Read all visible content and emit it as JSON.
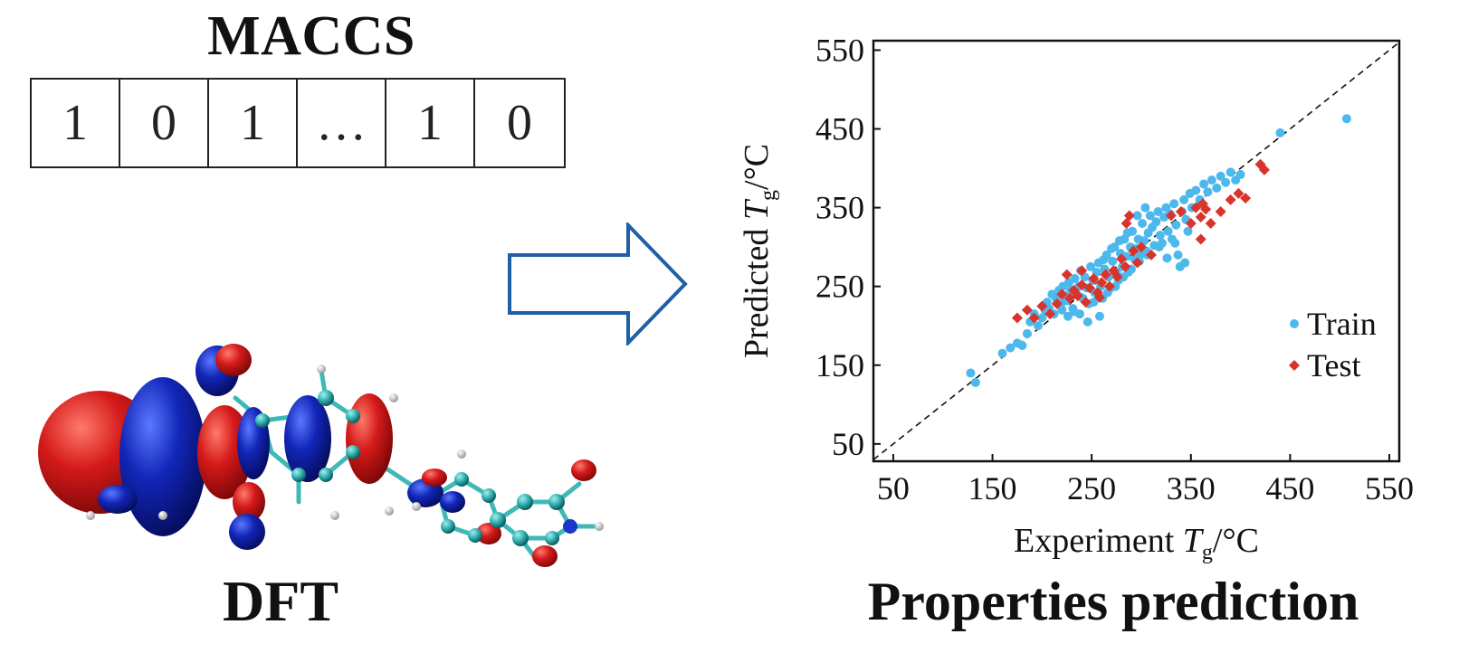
{
  "maccs": {
    "title": "MACCS",
    "bits": [
      "1",
      "0",
      "1",
      "…",
      "1",
      "0"
    ]
  },
  "dft": {
    "label": "DFT"
  },
  "prediction": {
    "label": "Properties prediction"
  },
  "colors": {
    "train": "#4db8ec",
    "test": "#d9342c",
    "arrow": "#1f5fa8",
    "orbital_red": "#d41a1a",
    "orbital_blue": "#1226b8",
    "atom_c": "#2aa6a6"
  },
  "chart_data": {
    "type": "scatter",
    "xlabel": "Experiment Tg/°C",
    "ylabel": "Predicted Tg/°C",
    "xlim": [
      30,
      560
    ],
    "ylim": [
      28,
      562
    ],
    "xticks": [
      50,
      150,
      250,
      350,
      450,
      550
    ],
    "yticks": [
      50,
      150,
      250,
      350,
      450,
      550
    ],
    "diagonal": true,
    "legend_position": "lower-right",
    "series": [
      {
        "name": "Train",
        "marker": "circle",
        "points": [
          [
            128,
            140
          ],
          [
            133,
            128
          ],
          [
            160,
            165
          ],
          [
            168,
            172
          ],
          [
            175,
            178
          ],
          [
            180,
            175
          ],
          [
            185,
            190
          ],
          [
            188,
            205
          ],
          [
            192,
            215
          ],
          [
            196,
            200
          ],
          [
            200,
            210
          ],
          [
            203,
            220
          ],
          [
            205,
            230
          ],
          [
            207,
            222
          ],
          [
            210,
            240
          ],
          [
            212,
            215
          ],
          [
            214,
            235
          ],
          [
            217,
            245
          ],
          [
            219,
            228
          ],
          [
            221,
            250
          ],
          [
            223,
            238
          ],
          [
            225,
            232
          ],
          [
            227,
            255
          ],
          [
            229,
            245
          ],
          [
            231,
            222
          ],
          [
            233,
            260
          ],
          [
            235,
            240
          ],
          [
            237,
            250
          ],
          [
            239,
            270
          ],
          [
            241,
            235
          ],
          [
            243,
            262
          ],
          [
            245,
            248
          ],
          [
            247,
            228
          ],
          [
            249,
            275
          ],
          [
            251,
            258
          ],
          [
            253,
            242
          ],
          [
            255,
            268
          ],
          [
            257,
            280
          ],
          [
            259,
            250
          ],
          [
            261,
            235
          ],
          [
            263,
            272
          ],
          [
            265,
            290
          ],
          [
            267,
            262
          ],
          [
            269,
            248
          ],
          [
            271,
            282
          ],
          [
            273,
            300
          ],
          [
            275,
            268
          ],
          [
            277,
            258
          ],
          [
            279,
            292
          ],
          [
            281,
            275
          ],
          [
            283,
            310
          ],
          [
            285,
            288
          ],
          [
            287,
            268
          ],
          [
            289,
            300
          ],
          [
            291,
            320
          ],
          [
            293,
            285
          ],
          [
            295,
            298
          ],
          [
            297,
            310
          ],
          [
            299,
            290
          ],
          [
            301,
            330
          ],
          [
            303,
            308
          ],
          [
            305,
            295
          ],
          [
            307,
            318
          ],
          [
            309,
            340
          ],
          [
            311,
            325
          ],
          [
            313,
            302
          ],
          [
            315,
            332
          ],
          [
            317,
            345
          ],
          [
            319,
            315
          ],
          [
            321,
            305
          ],
          [
            323,
            338
          ],
          [
            325,
            350
          ],
          [
            327,
            320
          ],
          [
            329,
            342
          ],
          [
            331,
            310
          ],
          [
            333,
            355
          ],
          [
            335,
            328
          ],
          [
            337,
            290
          ],
          [
            339,
            275
          ],
          [
            341,
            345
          ],
          [
            343,
            360
          ],
          [
            345,
            335
          ],
          [
            347,
            320
          ],
          [
            349,
            368
          ],
          [
            351,
            350
          ],
          [
            355,
            372
          ],
          [
            359,
            360
          ],
          [
            363,
            380
          ],
          [
            367,
            370
          ],
          [
            371,
            385
          ],
          [
            376,
            375
          ],
          [
            380,
            390
          ],
          [
            385,
            382
          ],
          [
            390,
            395
          ],
          [
            395,
            385
          ],
          [
            400,
            392
          ],
          [
            440,
            445
          ],
          [
            507,
            463
          ],
          [
            220,
            220
          ],
          [
            226,
            212
          ],
          [
            232,
            218
          ],
          [
            238,
            215
          ],
          [
            246,
            205
          ],
          [
            252,
            230
          ],
          [
            258,
            212
          ],
          [
            266,
            242
          ],
          [
            274,
            250
          ],
          [
            282,
            262
          ],
          [
            290,
            272
          ],
          [
            298,
            282
          ],
          [
            306,
            290
          ],
          [
            318,
            300
          ],
          [
            326,
            286
          ],
          [
            334,
            305
          ],
          [
            344,
            280
          ],
          [
            296,
            340
          ],
          [
            304,
            350
          ],
          [
            286,
            318
          ],
          [
            278,
            308
          ],
          [
            270,
            298
          ],
          [
            262,
            284
          ]
        ]
      },
      {
        "name": "Test",
        "marker": "diamond",
        "points": [
          [
            175,
            210
          ],
          [
            185,
            220
          ],
          [
            192,
            210
          ],
          [
            200,
            225
          ],
          [
            208,
            215
          ],
          [
            215,
            228
          ],
          [
            220,
            240
          ],
          [
            225,
            265
          ],
          [
            228,
            235
          ],
          [
            232,
            245
          ],
          [
            236,
            238
          ],
          [
            240,
            252
          ],
          [
            244,
            230
          ],
          [
            248,
            248
          ],
          [
            252,
            260
          ],
          [
            256,
            242
          ],
          [
            260,
            255
          ],
          [
            264,
            265
          ],
          [
            268,
            250
          ],
          [
            272,
            270
          ],
          [
            276,
            262
          ],
          [
            280,
            285
          ],
          [
            284,
            275
          ],
          [
            288,
            340
          ],
          [
            292,
            295
          ],
          [
            296,
            280
          ],
          [
            300,
            300
          ],
          [
            310,
            290
          ],
          [
            330,
            340
          ],
          [
            340,
            345
          ],
          [
            350,
            330
          ],
          [
            355,
            350
          ],
          [
            360,
            338
          ],
          [
            362,
            355
          ],
          [
            365,
            348
          ],
          [
            370,
            330
          ],
          [
            380,
            345
          ],
          [
            390,
            360
          ],
          [
            398,
            368
          ],
          [
            405,
            362
          ],
          [
            420,
            405
          ],
          [
            424,
            398
          ],
          [
            285,
            330
          ],
          [
            240,
            270
          ],
          [
            258,
            236
          ],
          [
            360,
            310
          ]
        ]
      }
    ]
  }
}
